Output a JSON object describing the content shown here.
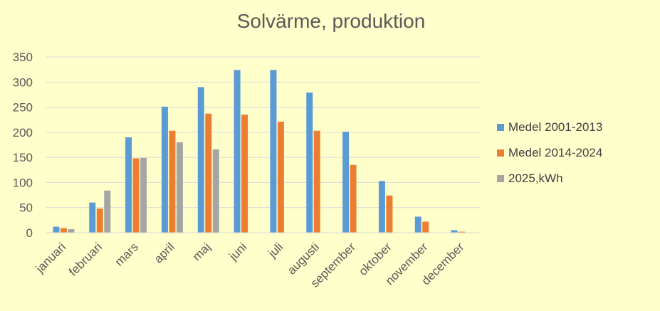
{
  "chart_data": {
    "type": "bar",
    "title": "Solvärme, produktion",
    "categories": [
      "januari",
      "februari",
      "mars",
      "april",
      "maj",
      "juni",
      "juli",
      "augusti",
      "september",
      "oktober",
      "november",
      "december"
    ],
    "series": [
      {
        "name": "Medel 2001-2013",
        "color": "#5b9bd5",
        "values": [
          12,
          60,
          190,
          251,
          290,
          324,
          324,
          279,
          201,
          103,
          32,
          5
        ]
      },
      {
        "name": "Medel 2014-2024",
        "color": "#ed7d31",
        "values": [
          9,
          48,
          148,
          203,
          237,
          235,
          221,
          203,
          135,
          74,
          22,
          2
        ]
      },
      {
        "name": "2025,kWh",
        "color": "#a5a5a5",
        "values": [
          7,
          84,
          149,
          180,
          166,
          null,
          null,
          null,
          null,
          null,
          null,
          null
        ]
      }
    ],
    "ylim": [
      0,
      350
    ],
    "yticks": [
      0,
      50,
      100,
      150,
      200,
      250,
      300,
      350
    ],
    "grid": true,
    "legend_position": "right"
  }
}
